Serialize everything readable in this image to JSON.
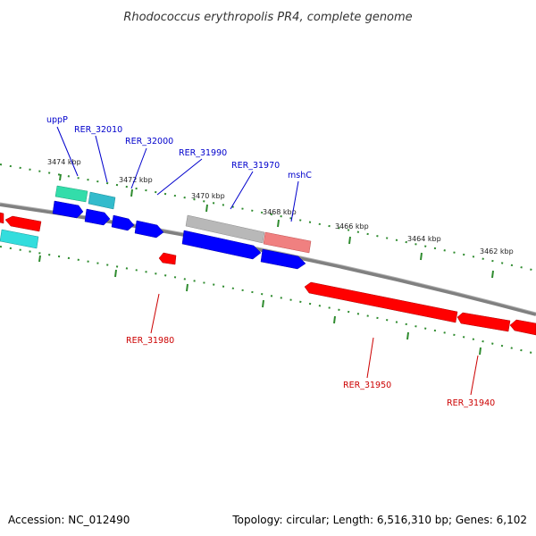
{
  "title": "Rhodococcus erythropolis PR4, complete genome",
  "footer": {
    "accession": "Accession: NC_012490",
    "summary": "Topology: circular; Length: 6,516,310 bp; Genes: 6,102"
  },
  "colors": {
    "backbone": "#808080",
    "tick": "#2e8b2e",
    "forward_gene": "#0000ff",
    "reverse_gene": "#ff0000",
    "forward_label": "#0000cc",
    "reverse_label": "#cc0000"
  },
  "scale_labels": [
    "3474 kbp",
    "3472 kbp",
    "3470 kbp",
    "3468 kbp",
    "3466 kbp",
    "3464 kbp",
    "3462 kbp"
  ],
  "forward_labels": [
    "uppP",
    "RER_32010",
    "RER_32000",
    "RER_31990",
    "RER_31970",
    "mshC"
  ],
  "reverse_labels": [
    "RER_31980",
    "RER_31950",
    "RER_31940"
  ]
}
